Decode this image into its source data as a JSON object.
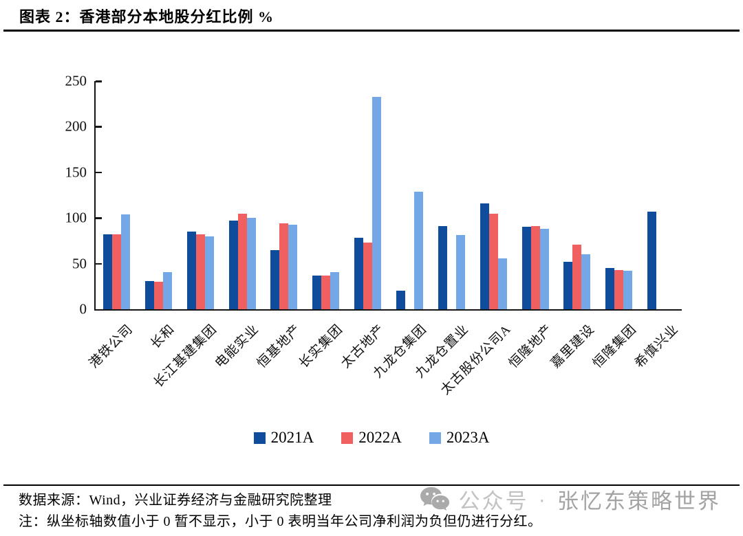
{
  "header": {
    "figure_label": "图表 2",
    "title": "图表 2：香港部分本地股分红比例 %"
  },
  "chart_data": {
    "type": "bar",
    "title": "香港部分本地股分红比例 %",
    "categories": [
      "港铁公司",
      "长和",
      "长江基建集团",
      "电能实业",
      "恒基地产",
      "长实集团",
      "太古地产",
      "九龙仓集团",
      "九龙仓置业",
      "太古股份公司A",
      "恒隆地产",
      "嘉里建设",
      "恒隆集团",
      "希慎兴业"
    ],
    "series": [
      {
        "name": "2021A",
        "color": "#0F4C9C",
        "values": [
          82,
          31,
          85,
          97,
          65,
          37,
          78,
          20,
          91,
          116,
          90,
          52,
          45,
          107
        ]
      },
      {
        "name": "2022A",
        "color": "#F06060",
        "values": [
          82,
          30,
          82,
          105,
          94,
          37,
          73,
          null,
          null,
          105,
          91,
          71,
          43,
          null
        ]
      },
      {
        "name": "2023A",
        "color": "#73A7E6",
        "values": [
          104,
          41,
          80,
          100,
          93,
          41,
          233,
          129,
          81,
          56,
          88,
          60,
          42,
          null
        ]
      }
    ],
    "ylabel": "",
    "xlabel": "",
    "ylim": [
      0,
      250
    ],
    "yticks": [
      0,
      50,
      100,
      150,
      200,
      250
    ],
    "grid": false,
    "legend_position": "bottom"
  },
  "footer": {
    "source": "数据来源：Wind，兴业证券经济与金融研究院整理",
    "note": "注：纵坐标轴数值小于 0 暂不显示，小于 0 表明当年公司净利润为负但仍进行分红。",
    "watermark": {
      "icon": "wechat-icon",
      "prefix": "公众号",
      "separator": "·",
      "name": "张忆东策略世界",
      "color": "#b3b3b3"
    }
  }
}
